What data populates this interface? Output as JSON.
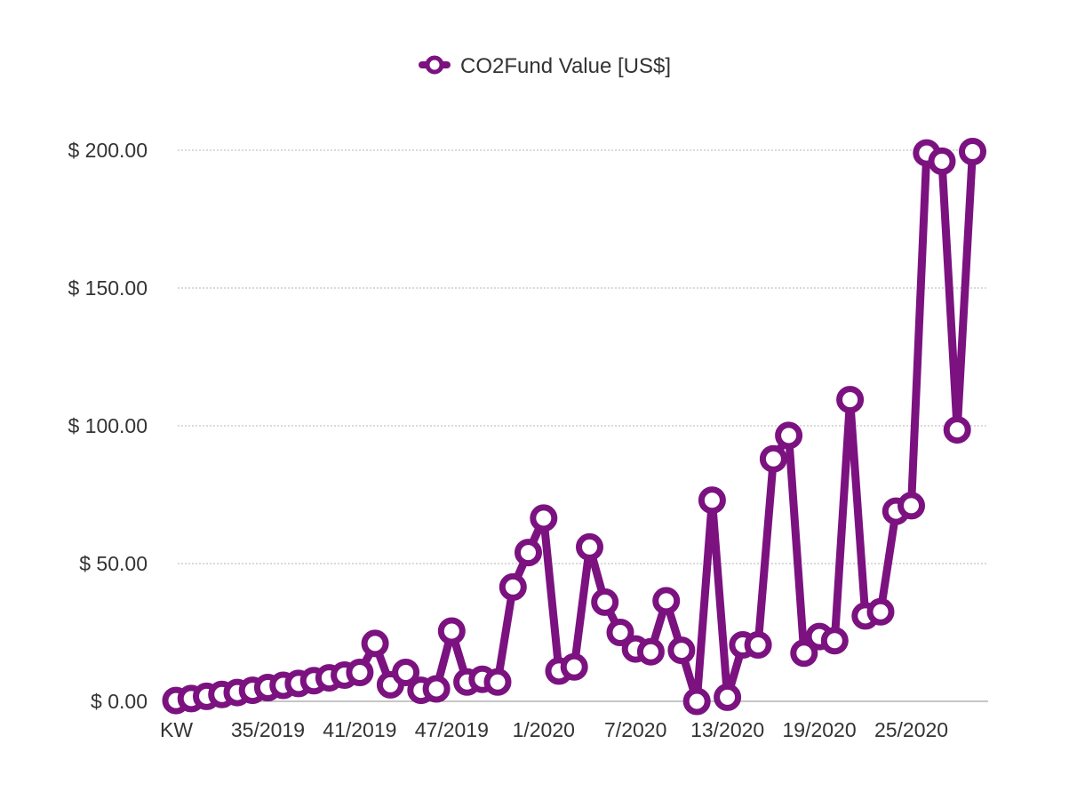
{
  "chart_data": {
    "type": "line",
    "legend": {
      "position": "top-center"
    },
    "grid": true,
    "series": [
      {
        "name": "CO2Fund Value [US$]",
        "color": "#7b1280",
        "values": [
          0.3,
          1.0,
          1.8,
          2.5,
          3.2,
          4.0,
          5.0,
          5.8,
          6.5,
          7.5,
          8.5,
          9.5,
          10.5,
          21.0,
          6.0,
          10.5,
          4.0,
          4.5,
          25.5,
          7.0,
          8.0,
          7.0,
          41.5,
          54.0,
          66.5,
          11.0,
          12.5,
          56.0,
          36.0,
          25.0,
          19.0,
          18.0,
          36.5,
          18.5,
          0.0,
          73.0,
          1.5,
          20.5,
          20.5,
          88.0,
          96.5,
          17.5,
          23.5,
          22.0,
          109.5,
          31.0,
          32.5,
          69.0,
          71.0,
          199.0,
          196.0,
          98.5,
          199.5
        ]
      }
    ],
    "x_tick_labels": [
      "KW",
      "35/2019",
      "41/2019",
      "47/2019",
      "1/2020",
      "7/2020",
      "13/2020",
      "19/2020",
      "25/2020"
    ],
    "x_tick_indices": [
      0,
      6,
      12,
      18,
      24,
      30,
      36,
      42,
      48
    ],
    "y_ticks": [
      "$ 200.00",
      "$ 150.00",
      "$ 100.00",
      "$ 50.00",
      "$ 0.00"
    ],
    "y_tick_values": [
      200,
      150,
      100,
      50,
      0
    ],
    "ylim": [
      0,
      200
    ]
  }
}
